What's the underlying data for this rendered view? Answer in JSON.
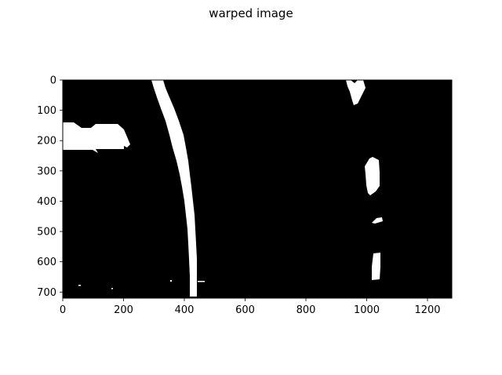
{
  "figure": {
    "title": "warped image"
  },
  "image": {
    "width": 1280,
    "height": 720,
    "background_color": "#000000",
    "foreground_color": "#ffffff"
  },
  "axes": {
    "x_ticks": [
      0,
      200,
      400,
      600,
      800,
      1000,
      1200
    ],
    "y_ticks": [
      0,
      100,
      200,
      300,
      400,
      500,
      600,
      700
    ],
    "x_range": [
      0,
      1280
    ],
    "y_range": [
      720,
      0
    ]
  }
}
